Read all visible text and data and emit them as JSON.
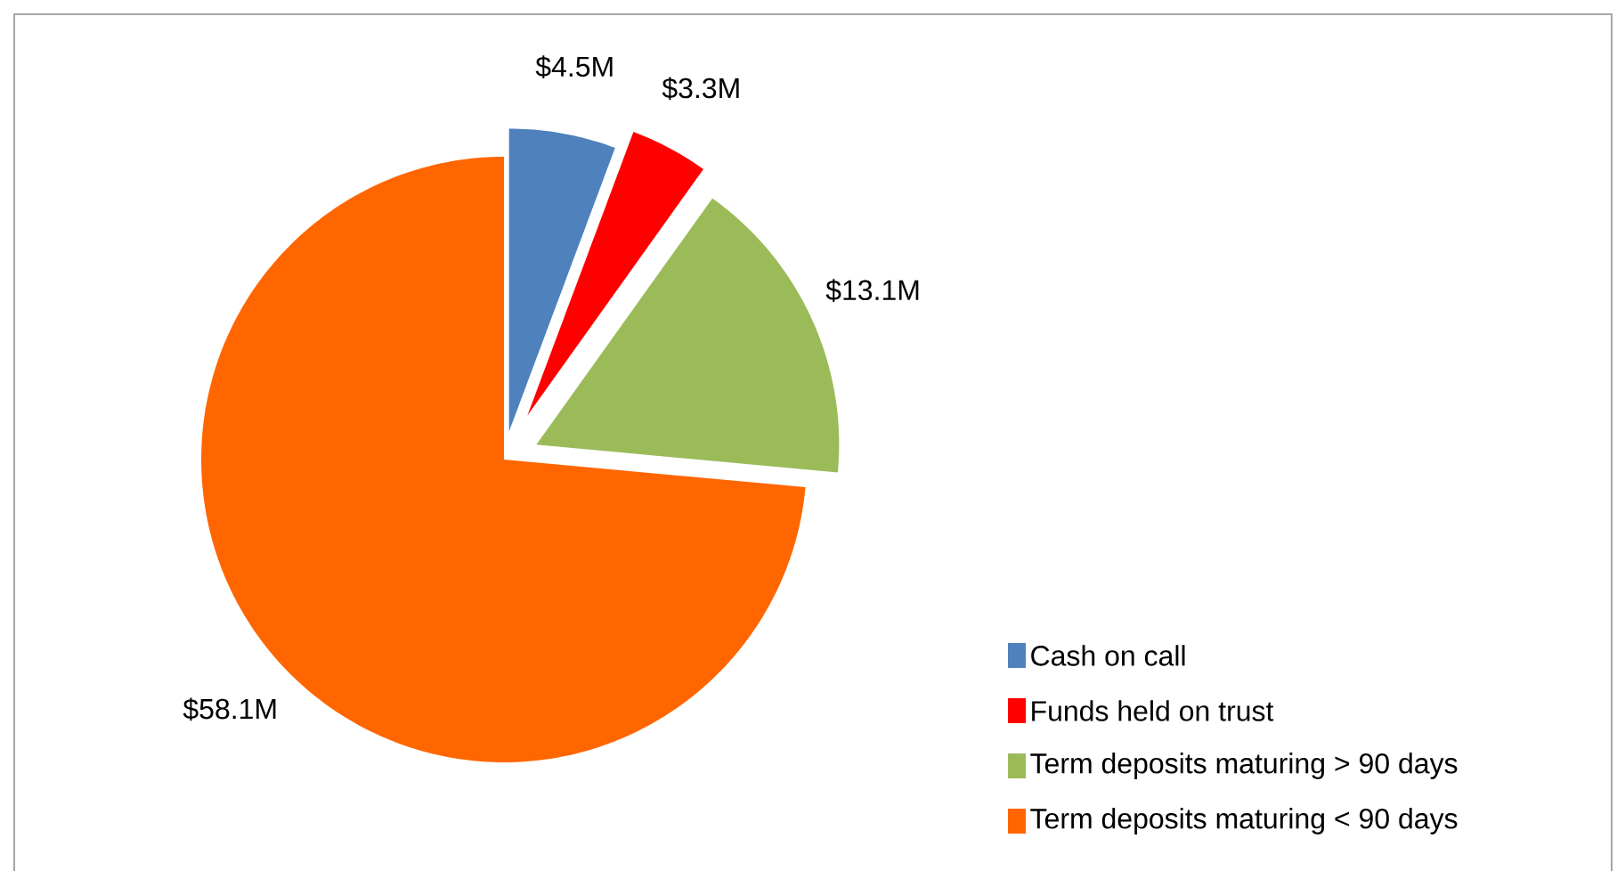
{
  "chart_data": {
    "type": "pie",
    "categories": [
      "Cash on call",
      "Funds held on trust",
      "Term deposits maturing > 90 days",
      "Term deposits maturing < 90 days"
    ],
    "values": [
      4.5,
      3.3,
      13.1,
      58.1
    ],
    "colors": [
      "#4f81bd",
      "#ff0000",
      "#9bbb59",
      "#ff6600"
    ],
    "value_labels": [
      "$4.5M",
      "$3.3M",
      "$13.1M",
      "$58.1M"
    ],
    "legend": "bottom right"
  }
}
